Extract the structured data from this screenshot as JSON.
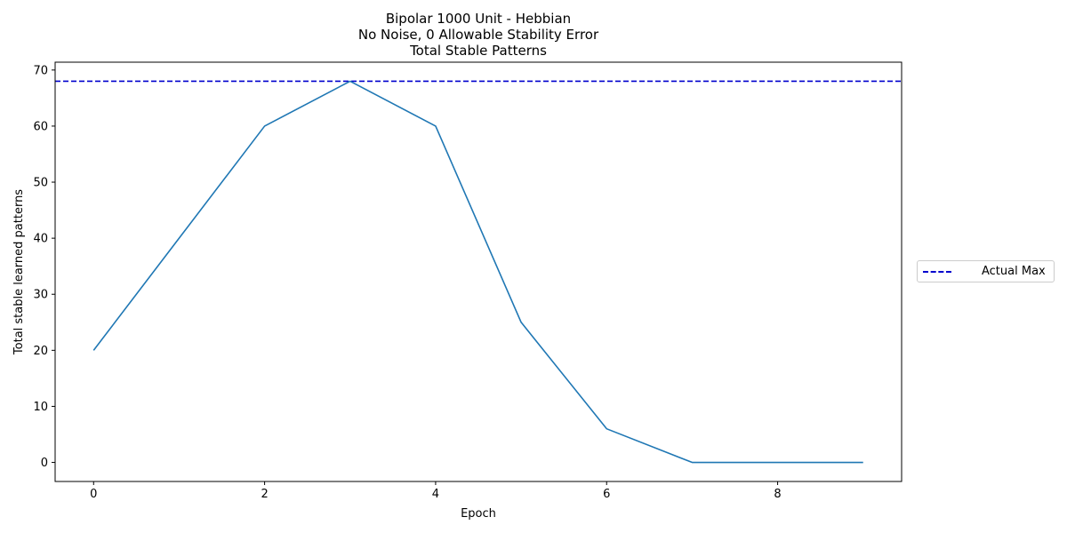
{
  "chart_data": {
    "type": "line",
    "title": [
      "Bipolar 1000 Unit - Hebbian",
      "No Noise, 0 Allowable Stability Error",
      "Total Stable Patterns"
    ],
    "xlabel": "Epoch",
    "ylabel": "Total stable learned patterns",
    "xlim": [
      -0.45,
      9.45
    ],
    "ylim": [
      -3.4,
      71.4
    ],
    "xticks": [
      0,
      2,
      4,
      6,
      8
    ],
    "yticks": [
      0,
      10,
      20,
      30,
      40,
      50,
      60,
      70
    ],
    "series": [
      {
        "x": [
          0,
          1,
          2,
          3,
          4,
          5,
          6,
          7,
          8,
          9
        ],
        "values": [
          20,
          40,
          60,
          68,
          60,
          25,
          6,
          0,
          0,
          0
        ],
        "color": "#1f77b4"
      }
    ],
    "reference_lines": [
      {
        "name": "Actual Max",
        "y": 68,
        "color": "#0000cd",
        "style": "dashed"
      }
    ],
    "legend": {
      "position": "right",
      "entries": [
        "Actual Max"
      ]
    },
    "grid": false
  }
}
